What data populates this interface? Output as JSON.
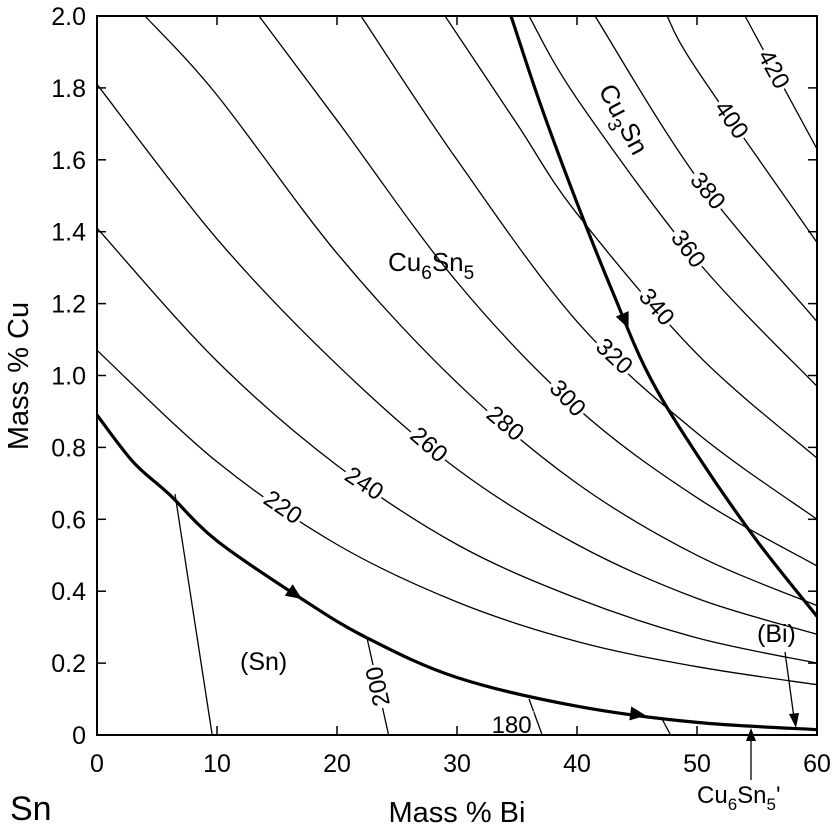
{
  "chart_data": {
    "type": "line",
    "xlabel": "Mass % Bi",
    "ylabel": "Mass % Cu",
    "corner_label": "Sn",
    "xlim": [
      0,
      60
    ],
    "ylim": [
      0,
      2.0
    ],
    "x_ticks": [
      "0",
      "10",
      "20",
      "30",
      "40",
      "50",
      "60"
    ],
    "y_ticks": [
      "0",
      "0.2",
      "0.4",
      "0.6",
      "0.8",
      "1.0",
      "1.2",
      "1.4",
      "1.6",
      "1.8",
      "2.0"
    ],
    "phase_regions": [
      {
        "name": "(Sn)"
      },
      {
        "name": "(Bi)"
      }
    ],
    "phase_labels": {
      "cu6sn5": {
        "base": "Cu",
        "sub1": "6",
        "mid": "Sn",
        "sub2": "5"
      },
      "cu3sn": {
        "base": "Cu",
        "sub1": "3",
        "mid": "Sn"
      },
      "cu6sn5_prime": {
        "base": "Cu",
        "sub1": "6",
        "mid": "Sn",
        "sub2": "5",
        "suffix": "'"
      }
    },
    "boundaries": [
      {
        "id": "sn_liquidus",
        "points": [
          [
            0,
            0.89
          ],
          [
            3,
            0.76
          ],
          [
            6,
            0.67
          ],
          [
            10,
            0.54
          ],
          [
            17,
            0.38
          ],
          [
            22.5,
            0.27
          ],
          [
            30,
            0.16
          ],
          [
            40,
            0.08
          ],
          [
            50,
            0.035
          ],
          [
            60,
            0.015
          ]
        ]
      },
      {
        "id": "cu3sn_cu6sn5",
        "points": [
          [
            34.5,
            2.0
          ],
          [
            37,
            1.75
          ],
          [
            40,
            1.48
          ],
          [
            43,
            1.23
          ],
          [
            46,
            1.0
          ],
          [
            50,
            0.78
          ],
          [
            55,
            0.54
          ],
          [
            60,
            0.33
          ]
        ]
      }
    ],
    "tie_lines": [
      {
        "label": "",
        "points": [
          [
            6.5,
            0.67
          ],
          [
            9.6,
            0
          ]
        ]
      },
      {
        "label": "200",
        "points": [
          [
            22.5,
            0.27
          ],
          [
            24.3,
            0
          ]
        ]
      },
      {
        "label": "180",
        "points": [
          [
            36,
            0.1
          ],
          [
            37.1,
            0
          ]
        ]
      },
      {
        "label": "",
        "points": [
          [
            47,
            0.05
          ],
          [
            47.8,
            0
          ]
        ]
      }
    ],
    "series": [
      {
        "name": "220",
        "points": [
          [
            0,
            1.07
          ],
          [
            10,
            0.76
          ],
          [
            20,
            0.53
          ],
          [
            30,
            0.37
          ],
          [
            40,
            0.26
          ],
          [
            50,
            0.19
          ],
          [
            60,
            0.14
          ]
        ]
      },
      {
        "name": "240",
        "points": [
          [
            0,
            1.41
          ],
          [
            10,
            1.04
          ],
          [
            20,
            0.75
          ],
          [
            30,
            0.53
          ],
          [
            40,
            0.38
          ],
          [
            50,
            0.27
          ],
          [
            60,
            0.2
          ]
        ]
      },
      {
        "name": "260",
        "points": [
          [
            0,
            1.81
          ],
          [
            10,
            1.38
          ],
          [
            20,
            1.03
          ],
          [
            30,
            0.74
          ],
          [
            40,
            0.53
          ],
          [
            50,
            0.38
          ],
          [
            60,
            0.28
          ]
        ]
      },
      {
        "name": "280",
        "points": [
          [
            4,
            2.0
          ],
          [
            10,
            1.78
          ],
          [
            20,
            1.34
          ],
          [
            30,
            0.98
          ],
          [
            40,
            0.7
          ],
          [
            50,
            0.5
          ],
          [
            60,
            0.36
          ]
        ]
      },
      {
        "name": "300",
        "points": [
          [
            13.5,
            2.0
          ],
          [
            20,
            1.71
          ],
          [
            30,
            1.26
          ],
          [
            40,
            0.91
          ],
          [
            50,
            0.66
          ],
          [
            60,
            0.47
          ]
        ]
      },
      {
        "name": "320",
        "points": [
          [
            22,
            2.0
          ],
          [
            30,
            1.6
          ],
          [
            40,
            1.15
          ],
          [
            50,
            0.84
          ],
          [
            60,
            0.6
          ]
        ]
      },
      {
        "name": "340",
        "points": [
          [
            29,
            2.0
          ],
          [
            35,
            1.7
          ],
          [
            40,
            1.45
          ],
          [
            50,
            1.06
          ],
          [
            60,
            0.77
          ]
        ]
      },
      {
        "name": "360",
        "points": [
          [
            36,
            2.0
          ],
          [
            40,
            1.77
          ],
          [
            50,
            1.32
          ],
          [
            60,
            0.97
          ]
        ]
      },
      {
        "name": "380",
        "points": [
          [
            41.5,
            2.0
          ],
          [
            50,
            1.55
          ],
          [
            60,
            1.15
          ]
        ]
      },
      {
        "name": "400",
        "points": [
          [
            47.5,
            2.0
          ],
          [
            50,
            1.85
          ],
          [
            60,
            1.37
          ]
        ]
      },
      {
        "name": "420",
        "points": [
          [
            54,
            2.0
          ],
          [
            60,
            1.63
          ]
        ]
      }
    ],
    "grid": false
  }
}
